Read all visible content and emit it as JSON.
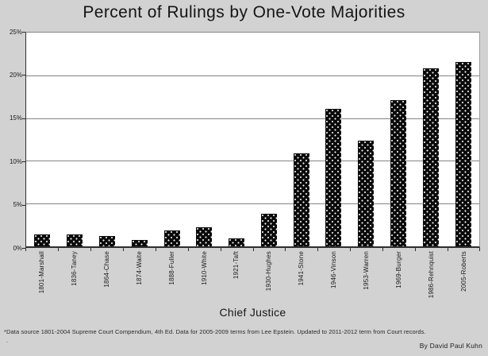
{
  "chart_data": {
    "type": "bar",
    "title": "Percent of Rulings by One-Vote Majorities",
    "xlabel": "Chief Justice",
    "ylabel": "",
    "ylim": [
      0,
      25
    ],
    "ytick_labels": [
      "0%",
      "5%",
      "10%",
      "15%",
      "20%",
      "25%"
    ],
    "ytick_values": [
      0,
      5,
      10,
      15,
      20,
      25
    ],
    "grid": "horizontal-gridlines-on",
    "legend_position": "none",
    "bar_style": "black-with-white-dot-pattern",
    "categories": [
      "1801-Marshall",
      "1836-Taney",
      "1864-Chase",
      "1874-Waite",
      "1888-Fuller",
      "1910-White",
      "1921-Taft",
      "1930-Hughes",
      "1941-Stone",
      "1946-Vinson",
      "1953-Warren",
      "1969-Burger",
      "1986-Rehnquist",
      "2005-Roberts"
    ],
    "values": [
      1.4,
      1.4,
      1.2,
      0.7,
      1.9,
      2.2,
      0.9,
      3.8,
      10.9,
      16.1,
      12.4,
      17.1,
      20.8,
      21.6
    ]
  },
  "footer": {
    "footnote": "*Data source 1801-2004 Supreme Court Compendium, 4th Ed. Data for 2005-2009 terms from Lee Epstein. Updated to 2011-2012 term from Court records.",
    "footnote_line2": ".",
    "attribution": "By David Paul Kuhn"
  },
  "colors": {
    "background": "#d2d2d2",
    "plot_background": "#ffffff",
    "gridline": "#848484",
    "axis": "#2e2e2e",
    "bar_fill": "#0a0a0a",
    "bar_dots": "#ffffff",
    "text": "#1c1c1c"
  }
}
